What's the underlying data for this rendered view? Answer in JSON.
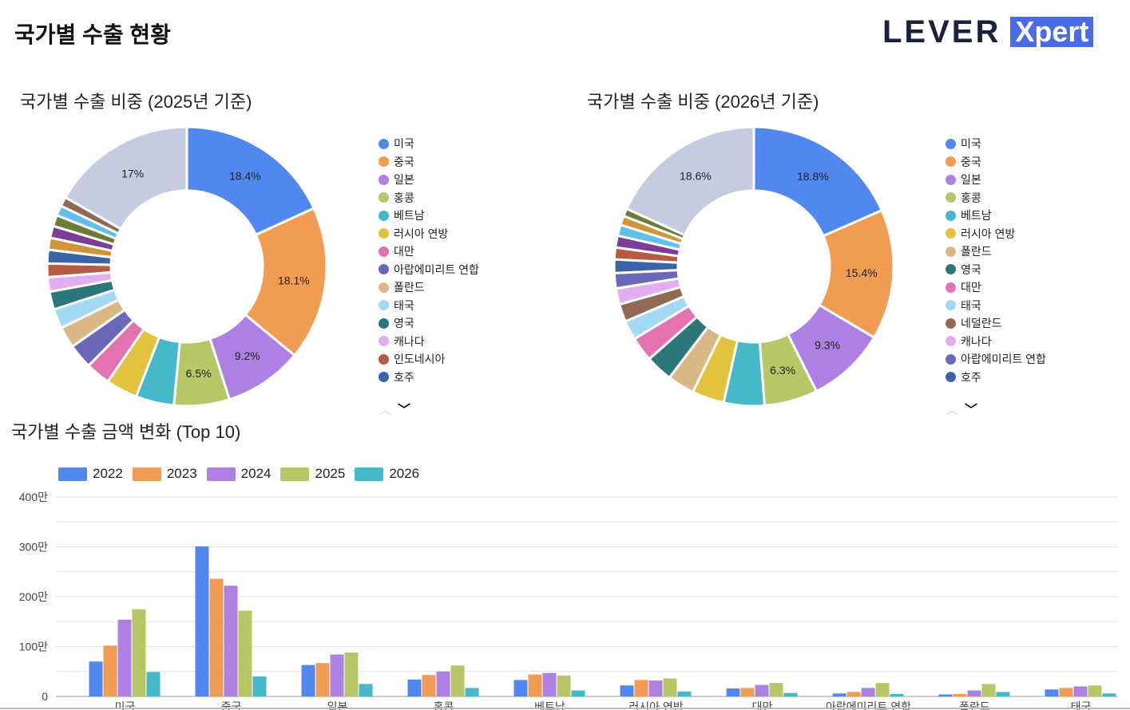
{
  "header": {
    "title": "국가별 수출 현황",
    "logo_text": "LEVER Xpert",
    "logo_part1": "LEVER",
    "logo_part2": "Xpert"
  },
  "colors": {
    "others": "#c5cce1"
  },
  "chart_data": [
    {
      "type": "pie",
      "variant": "donut",
      "title": "국가별 수출 비중 (2025년 기준)",
      "legend": [
        {
          "label": "미국",
          "color": "#5088f0"
        },
        {
          "label": "중국",
          "color": "#f09c52"
        },
        {
          "label": "일본",
          "color": "#ae80e3"
        },
        {
          "label": "홍콩",
          "color": "#b7c766"
        },
        {
          "label": "베트남",
          "color": "#45b9c9"
        },
        {
          "label": "러시아 연방",
          "color": "#e3c23e"
        },
        {
          "label": "대만",
          "color": "#e273b0"
        },
        {
          "label": "아랍에미리트 연합",
          "color": "#6a68b8"
        },
        {
          "label": "폴란드",
          "color": "#d9b886"
        },
        {
          "label": "태국",
          "color": "#a3d9f2"
        },
        {
          "label": "영국",
          "color": "#2c777c"
        },
        {
          "label": "캐나다",
          "color": "#e3aef0"
        },
        {
          "label": "인도네시아",
          "color": "#b65a43"
        },
        {
          "label": "호주",
          "color": "#3a64a6"
        }
      ],
      "slices": [
        {
          "value": 18.4,
          "color": "#5088f0",
          "label": "18.4%"
        },
        {
          "value": 18.1,
          "color": "#f09c52",
          "label": "18.1%"
        },
        {
          "value": 9.2,
          "color": "#ae80e3",
          "label": "9.2%"
        },
        {
          "value": 6.5,
          "color": "#b7c766",
          "label": "6.5%"
        },
        {
          "value": 4.5,
          "color": "#45b9c9"
        },
        {
          "value": 3.7,
          "color": "#e3c23e"
        },
        {
          "value": 2.9,
          "color": "#e273b0"
        },
        {
          "value": 2.9,
          "color": "#6a68b8"
        },
        {
          "value": 2.5,
          "color": "#d9b886"
        },
        {
          "value": 2.3,
          "color": "#a3d9f2"
        },
        {
          "value": 2.1,
          "color": "#2c777c"
        },
        {
          "value": 1.7,
          "color": "#e3aef0"
        },
        {
          "value": 1.6,
          "color": "#b65a43"
        },
        {
          "value": 1.6,
          "color": "#3a64a6"
        },
        {
          "value": 1.4,
          "color": "#cf9638"
        },
        {
          "value": 1.4,
          "color": "#7d3d96"
        },
        {
          "value": 1.3,
          "color": "#6e7a37"
        },
        {
          "value": 1.2,
          "color": "#62c0e8"
        },
        {
          "value": 1.1,
          "color": "#8f6a55"
        },
        {
          "value": 17.0,
          "color": "#c5cce1",
          "label": "17%"
        }
      ]
    },
    {
      "type": "pie",
      "variant": "donut",
      "title": "국가별 수출 비중 (2026년 기준)",
      "legend": [
        {
          "label": "미국",
          "color": "#5088f0"
        },
        {
          "label": "중국",
          "color": "#f09c52"
        },
        {
          "label": "일본",
          "color": "#ae80e3"
        },
        {
          "label": "홍콩",
          "color": "#b7c766"
        },
        {
          "label": "베트남",
          "color": "#45b9c9"
        },
        {
          "label": "러시아 연방",
          "color": "#e3c23e"
        },
        {
          "label": "폴란드",
          "color": "#d9b886"
        },
        {
          "label": "영국",
          "color": "#2c777c"
        },
        {
          "label": "대만",
          "color": "#e273b0"
        },
        {
          "label": "태국",
          "color": "#a3d9f2"
        },
        {
          "label": "네덜란드",
          "color": "#8f6a55"
        },
        {
          "label": "캐나다",
          "color": "#e3aef0"
        },
        {
          "label": "아랍에미리트 연합",
          "color": "#6a68b8"
        },
        {
          "label": "호주",
          "color": "#3a64a6"
        }
      ],
      "slices": [
        {
          "value": 18.8,
          "color": "#5088f0",
          "label": "18.8%"
        },
        {
          "value": 15.4,
          "color": "#f09c52",
          "label": "15.4%"
        },
        {
          "value": 9.3,
          "color": "#ae80e3",
          "label": "9.3%"
        },
        {
          "value": 6.3,
          "color": "#b7c766",
          "label": "6.3%"
        },
        {
          "value": 4.8,
          "color": "#45b9c9"
        },
        {
          "value": 3.8,
          "color": "#e3c23e"
        },
        {
          "value": 3.2,
          "color": "#d9b886"
        },
        {
          "value": 3.2,
          "color": "#2c777c"
        },
        {
          "value": 2.9,
          "color": "#e273b0"
        },
        {
          "value": 2.3,
          "color": "#a3d9f2"
        },
        {
          "value": 2.1,
          "color": "#8f6a55"
        },
        {
          "value": 1.9,
          "color": "#e3aef0"
        },
        {
          "value": 1.8,
          "color": "#6a68b8"
        },
        {
          "value": 1.6,
          "color": "#3a64a6"
        },
        {
          "value": 1.4,
          "color": "#b65a43"
        },
        {
          "value": 1.4,
          "color": "#7d3d96"
        },
        {
          "value": 1.3,
          "color": "#62c0e8"
        },
        {
          "value": 1.1,
          "color": "#cf9638"
        },
        {
          "value": 0.9,
          "color": "#6e7a37"
        },
        {
          "value": 18.6,
          "color": "#c5cce1",
          "label": "18.6%"
        }
      ]
    },
    {
      "type": "bar",
      "title": "국가별 수출 금액 변화 (Top 10)",
      "categories": [
        "미국",
        "중국",
        "일본",
        "홍콩",
        "베트남",
        "러시아 연방",
        "대만",
        "아랍에미리트 연합",
        "폴란드",
        "태국"
      ],
      "series": [
        {
          "name": "2022",
          "color": "#5088f0",
          "values": [
            70,
            301,
            63,
            34,
            33,
            22,
            16,
            6,
            4,
            14
          ]
        },
        {
          "name": "2023",
          "color": "#f09c52",
          "values": [
            102,
            236,
            67,
            43,
            44,
            33,
            17,
            9,
            5,
            17
          ]
        },
        {
          "name": "2024",
          "color": "#ae80e3",
          "values": [
            154,
            222,
            84,
            50,
            47,
            32,
            23,
            17,
            12,
            20
          ]
        },
        {
          "name": "2025",
          "color": "#b7c766",
          "values": [
            175,
            172,
            88,
            62,
            42,
            36,
            27,
            27,
            25,
            22
          ]
        },
        {
          "name": "2026",
          "color": "#45b9c9",
          "values": [
            49,
            40,
            25,
            17,
            12,
            10,
            7,
            5,
            9,
            6
          ]
        }
      ],
      "value_unit": "만",
      "ylim": [
        0,
        400
      ],
      "yticks": [
        {
          "value": 0,
          "label": "0"
        },
        {
          "value": 100,
          "label": "100만"
        },
        {
          "value": 200,
          "label": "200만"
        },
        {
          "value": 300,
          "label": "300만"
        },
        {
          "value": 400,
          "label": "400만"
        }
      ],
      "grid": true,
      "legend_position": "top-left"
    }
  ]
}
